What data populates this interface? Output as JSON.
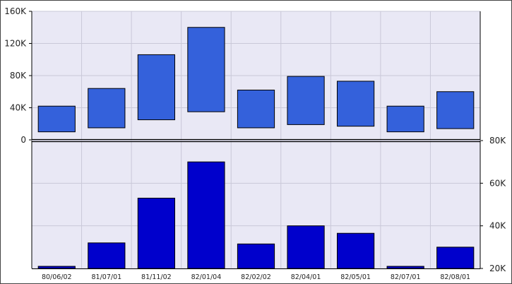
{
  "chart_data": [
    {
      "type": "bar",
      "subtype": "floating-range",
      "categories": [
        "80/06/02",
        "81/07/01",
        "81/11/02",
        "82/01/04",
        "82/02/02",
        "82/04/01",
        "82/05/01",
        "82/07/01",
        "82/08/01"
      ],
      "low": [
        10000,
        15000,
        25000,
        35000,
        15000,
        19000,
        17000,
        10000,
        14000
      ],
      "high": [
        42000,
        64000,
        106000,
        140000,
        62000,
        79000,
        73000,
        42000,
        60000
      ],
      "ylim": [
        0,
        160000
      ],
      "yticks": [
        0,
        40000,
        80000,
        120000,
        160000
      ],
      "ytick_labels": [
        "0",
        "40K",
        "80K",
        "120K",
        "160K"
      ],
      "ytick_side": "left",
      "grid": true,
      "colors": {
        "bar": "#3461db",
        "plot_bg": "#e9e8f5",
        "grid": "#c9c8d8"
      }
    },
    {
      "type": "bar",
      "categories": [
        "80/06/02",
        "81/07/01",
        "81/11/02",
        "82/01/04",
        "82/02/02",
        "82/04/01",
        "82/05/01",
        "82/07/01",
        "82/08/01"
      ],
      "values": [
        21000,
        32000,
        53000,
        70000,
        31500,
        40000,
        36500,
        21000,
        30000
      ],
      "ylim": [
        20000,
        80000
      ],
      "yticks": [
        20000,
        40000,
        60000,
        80000
      ],
      "ytick_labels": [
        "20K",
        "40K",
        "60K",
        "80K"
      ],
      "ytick_side": "right",
      "grid": true,
      "colors": {
        "bar": "#0000cc",
        "plot_bg": "#e9e8f5",
        "grid": "#c9c8d8"
      }
    }
  ]
}
